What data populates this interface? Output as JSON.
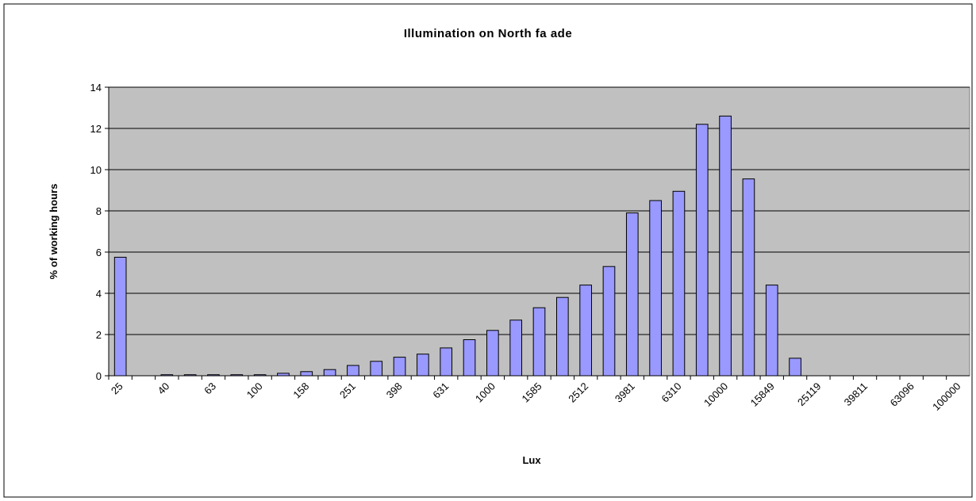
{
  "chart_data": {
    "type": "bar",
    "title": "Illumination on North fa ade",
    "x_label": "Lux",
    "y_label": "% of working hours",
    "categories": [
      "25",
      null,
      "40",
      null,
      "63",
      null,
      "100",
      null,
      "158",
      null,
      "251",
      null,
      "398",
      null,
      "631",
      null,
      "1000",
      null,
      "1585",
      null,
      "2512",
      null,
      "3981",
      null,
      "6310",
      null,
      "10000",
      null,
      "15849",
      null,
      "25119",
      null,
      "39811",
      null,
      "63096",
      null,
      "100000"
    ],
    "values": [
      5.75,
      0,
      0.05,
      0.05,
      0.05,
      0.05,
      0.05,
      0.12,
      0.2,
      0.3,
      0.5,
      0.7,
      0.9,
      1.05,
      1.35,
      1.75,
      2.2,
      2.7,
      3.3,
      3.8,
      4.4,
      5.3,
      7.9,
      8.5,
      8.95,
      12.2,
      12.6,
      9.55,
      4.4,
      0.85,
      0,
      0,
      0,
      0,
      0,
      0,
      0
    ],
    "color": "#9999ff",
    "ylim": [
      0,
      14
    ],
    "yticks": [
      0,
      2,
      4,
      6,
      8,
      10,
      12,
      14
    ],
    "grid": true
  }
}
